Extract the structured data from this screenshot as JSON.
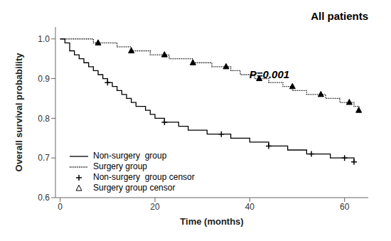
{
  "chart_data": {
    "type": "line",
    "title": "All patients",
    "annotation": "P=0.001",
    "x_label": "Time (months)",
    "y_label": "Overall survival probability",
    "xlim": [
      -1,
      65
    ],
    "ylim": [
      0.6,
      1.03
    ],
    "xticks": [
      0,
      20,
      40,
      60
    ],
    "yticks": [
      0.6,
      0.7,
      0.8,
      0.9,
      {
        "value": 1.0,
        "label": "1.0"
      }
    ],
    "legend": "lower left",
    "series": [
      {
        "name": "Non-surgery  group",
        "type": "step",
        "line_style": "solid",
        "color": "#000000",
        "x": [
          0,
          1,
          2,
          3,
          4,
          5,
          6,
          7,
          8,
          9,
          10,
          11,
          12,
          13,
          14,
          15,
          16,
          17,
          18,
          19,
          20,
          21,
          22,
          23,
          24,
          25,
          26,
          27,
          28,
          29,
          30,
          31,
          32,
          33,
          34,
          35,
          36,
          37,
          38,
          39,
          40,
          41,
          42,
          43,
          44,
          45,
          46,
          47,
          48,
          49,
          50,
          51,
          52,
          53,
          54,
          55,
          56,
          57,
          58,
          59,
          60,
          61,
          62
        ],
        "values": [
          1.0,
          0.99,
          0.97,
          0.96,
          0.95,
          0.94,
          0.93,
          0.92,
          0.91,
          0.9,
          0.89,
          0.88,
          0.87,
          0.86,
          0.85,
          0.84,
          0.83,
          0.83,
          0.82,
          0.81,
          0.8,
          0.8,
          0.79,
          0.79,
          0.79,
          0.78,
          0.78,
          0.77,
          0.77,
          0.77,
          0.77,
          0.76,
          0.76,
          0.76,
          0.76,
          0.76,
          0.75,
          0.75,
          0.75,
          0.75,
          0.74,
          0.74,
          0.74,
          0.74,
          0.73,
          0.73,
          0.73,
          0.73,
          0.72,
          0.72,
          0.72,
          0.72,
          0.71,
          0.71,
          0.71,
          0.71,
          0.71,
          0.7,
          0.7,
          0.7,
          0.7,
          0.7,
          0.69
        ]
      },
      {
        "name": "Surgery group",
        "type": "step",
        "line_style": "dotted",
        "color": "#000000",
        "x": [
          0,
          1,
          2,
          3,
          4,
          5,
          6,
          7,
          8,
          9,
          10,
          11,
          12,
          13,
          14,
          15,
          16,
          17,
          18,
          19,
          20,
          21,
          22,
          23,
          24,
          25,
          26,
          27,
          28,
          29,
          30,
          31,
          32,
          33,
          34,
          35,
          36,
          37,
          38,
          39,
          40,
          41,
          42,
          43,
          44,
          45,
          46,
          47,
          48,
          49,
          50,
          51,
          52,
          53,
          54,
          55,
          56,
          57,
          58,
          59,
          60,
          61,
          62,
          63
        ],
        "values": [
          1.0,
          1.0,
          1.0,
          1.0,
          1.0,
          1.0,
          1.0,
          0.99,
          0.99,
          0.99,
          0.99,
          0.99,
          0.98,
          0.98,
          0.98,
          0.97,
          0.97,
          0.97,
          0.97,
          0.96,
          0.96,
          0.96,
          0.96,
          0.95,
          0.95,
          0.95,
          0.95,
          0.95,
          0.94,
          0.94,
          0.94,
          0.94,
          0.93,
          0.93,
          0.93,
          0.93,
          0.92,
          0.92,
          0.91,
          0.91,
          0.91,
          0.9,
          0.9,
          0.9,
          0.89,
          0.89,
          0.89,
          0.88,
          0.88,
          0.87,
          0.87,
          0.87,
          0.86,
          0.86,
          0.86,
          0.86,
          0.85,
          0.85,
          0.85,
          0.84,
          0.84,
          0.84,
          0.83,
          0.82
        ]
      },
      {
        "name": "Non-surgery  group censor",
        "type": "scatter",
        "marker": "plus",
        "color": "#000000",
        "x": [
          10,
          22,
          34,
          44,
          53,
          60,
          62
        ],
        "values": [
          0.89,
          0.79,
          0.76,
          0.73,
          0.71,
          0.7,
          0.69
        ]
      },
      {
        "name": "Surgery group censor",
        "type": "scatter",
        "marker": "triangle",
        "color": "#000000",
        "x": [
          8,
          15,
          22,
          28,
          35,
          42,
          49,
          55,
          61,
          63
        ],
        "values": [
          0.99,
          0.97,
          0.96,
          0.94,
          0.93,
          0.9,
          0.88,
          0.86,
          0.84,
          0.82
        ]
      }
    ]
  }
}
